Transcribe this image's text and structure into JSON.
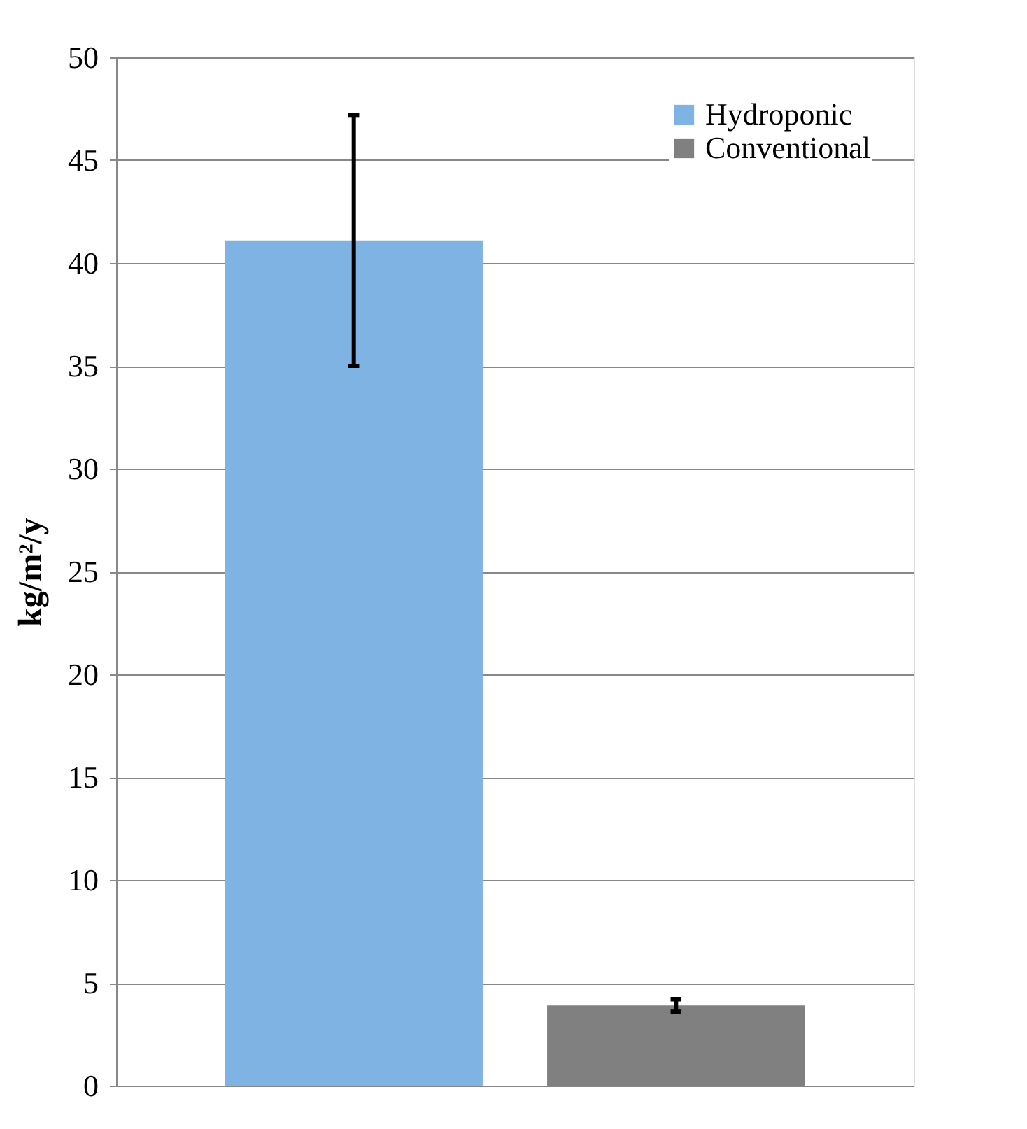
{
  "chart_data": {
    "type": "bar",
    "ylabel": "kg/m²/y",
    "categories": [
      null
    ],
    "series": [
      {
        "name": "Hydroponic",
        "color": "#7eb3e3",
        "values": [
          41.1
        ],
        "errors": [
          6.1
        ]
      },
      {
        "name": "Conventional",
        "color": "#808080",
        "values": [
          3.9
        ],
        "errors": [
          0.3
        ]
      }
    ],
    "ylim": [
      0,
      50
    ],
    "yticks": [
      0,
      5,
      10,
      15,
      20,
      25,
      30,
      35,
      40,
      45,
      50
    ],
    "grid": "y",
    "legend": "top right",
    "tick_labels": "y"
  }
}
